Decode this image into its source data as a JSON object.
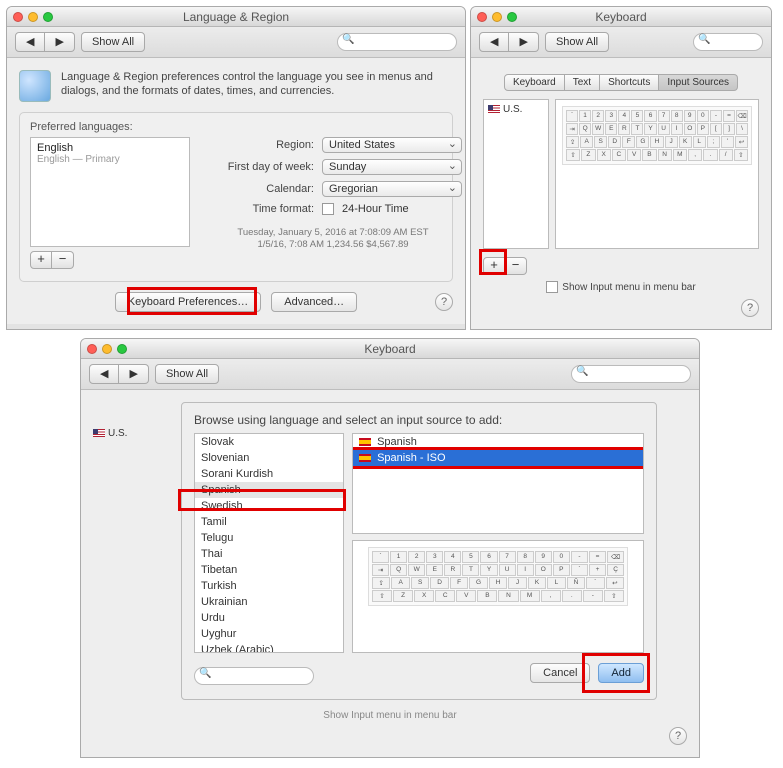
{
  "win1": {
    "title": "Language & Region",
    "showAll": "Show All",
    "intro": "Language & Region preferences control the language you see in menus and dialogs, and the formats of dates, times, and currencies.",
    "prefLangsLabel": "Preferred languages:",
    "lang": "English",
    "langSub": "English — Primary",
    "regionLabel": "Region:",
    "regionValue": "United States",
    "firstDayLabel": "First day of week:",
    "firstDayValue": "Sunday",
    "calendarLabel": "Calendar:",
    "calendarValue": "Gregorian",
    "timeFmtLabel": "Time format:",
    "timeFmtValue": "24-Hour Time",
    "example1": "Tuesday, January 5, 2016 at 7:08:09 AM EST",
    "example2": "1/5/16, 7:08 AM    1,234.56    $4,567.89",
    "kbPrefs": "Keyboard Preferences…",
    "advanced": "Advanced…",
    "help": "?"
  },
  "win2": {
    "title": "Keyboard",
    "showAll": "Show All",
    "tabs": {
      "t1": "Keyboard",
      "t2": "Text",
      "t3": "Shortcuts",
      "t4": "Input Sources"
    },
    "us": "U.S.",
    "krow1": [
      "`",
      "1",
      "2",
      "3",
      "4",
      "5",
      "6",
      "7",
      "8",
      "9",
      "0",
      "-",
      "=",
      "⌫"
    ],
    "krow2": [
      "⇥",
      "Q",
      "W",
      "E",
      "R",
      "T",
      "Y",
      "U",
      "I",
      "O",
      "P",
      "[",
      "]",
      "\\"
    ],
    "krow3": [
      "⇪",
      "A",
      "S",
      "D",
      "F",
      "G",
      "H",
      "J",
      "K",
      "L",
      ";",
      "'",
      "↩"
    ],
    "krow4": [
      "⇧",
      "Z",
      "X",
      "C",
      "V",
      "B",
      "N",
      "M",
      ",",
      ".",
      "/",
      "⇧"
    ],
    "showInput": "Show Input menu in menu bar",
    "help": "?"
  },
  "win3": {
    "title": "Keyboard",
    "showAll": "Show All",
    "sheetTitle": "Browse using language and select an input source to add:",
    "langs": [
      "Slovak",
      "Slovenian",
      "Sorani Kurdish",
      "Spanish",
      "Swedish",
      "Tamil",
      "Telugu",
      "Thai",
      "Tibetan",
      "Turkish",
      "Ukrainian",
      "Urdu",
      "Uyghur",
      "Uzbek (Arabic)"
    ],
    "selectedLang": "Spanish",
    "sources": {
      "s1": "Spanish",
      "s2": "Spanish - ISO"
    },
    "cancel": "Cancel",
    "add": "Add",
    "ghost": "Show Input menu in menu bar",
    "help": "?",
    "us": "U.S.",
    "krow1": [
      "`",
      "1",
      "2",
      "3",
      "4",
      "5",
      "6",
      "7",
      "8",
      "9",
      "0",
      "-",
      "=",
      "⌫"
    ],
    "krow2": [
      "⇥",
      "Q",
      "W",
      "E",
      "R",
      "T",
      "Y",
      "U",
      "I",
      "O",
      "P",
      "`",
      "+",
      "Ç"
    ],
    "krow3": [
      "⇪",
      "A",
      "S",
      "D",
      "F",
      "G",
      "H",
      "J",
      "K",
      "L",
      "Ñ",
      "´",
      "↩"
    ],
    "krow4": [
      "⇧",
      "Z",
      "X",
      "C",
      "V",
      "B",
      "N",
      "M",
      ",",
      ".",
      "-",
      "⇧"
    ]
  }
}
